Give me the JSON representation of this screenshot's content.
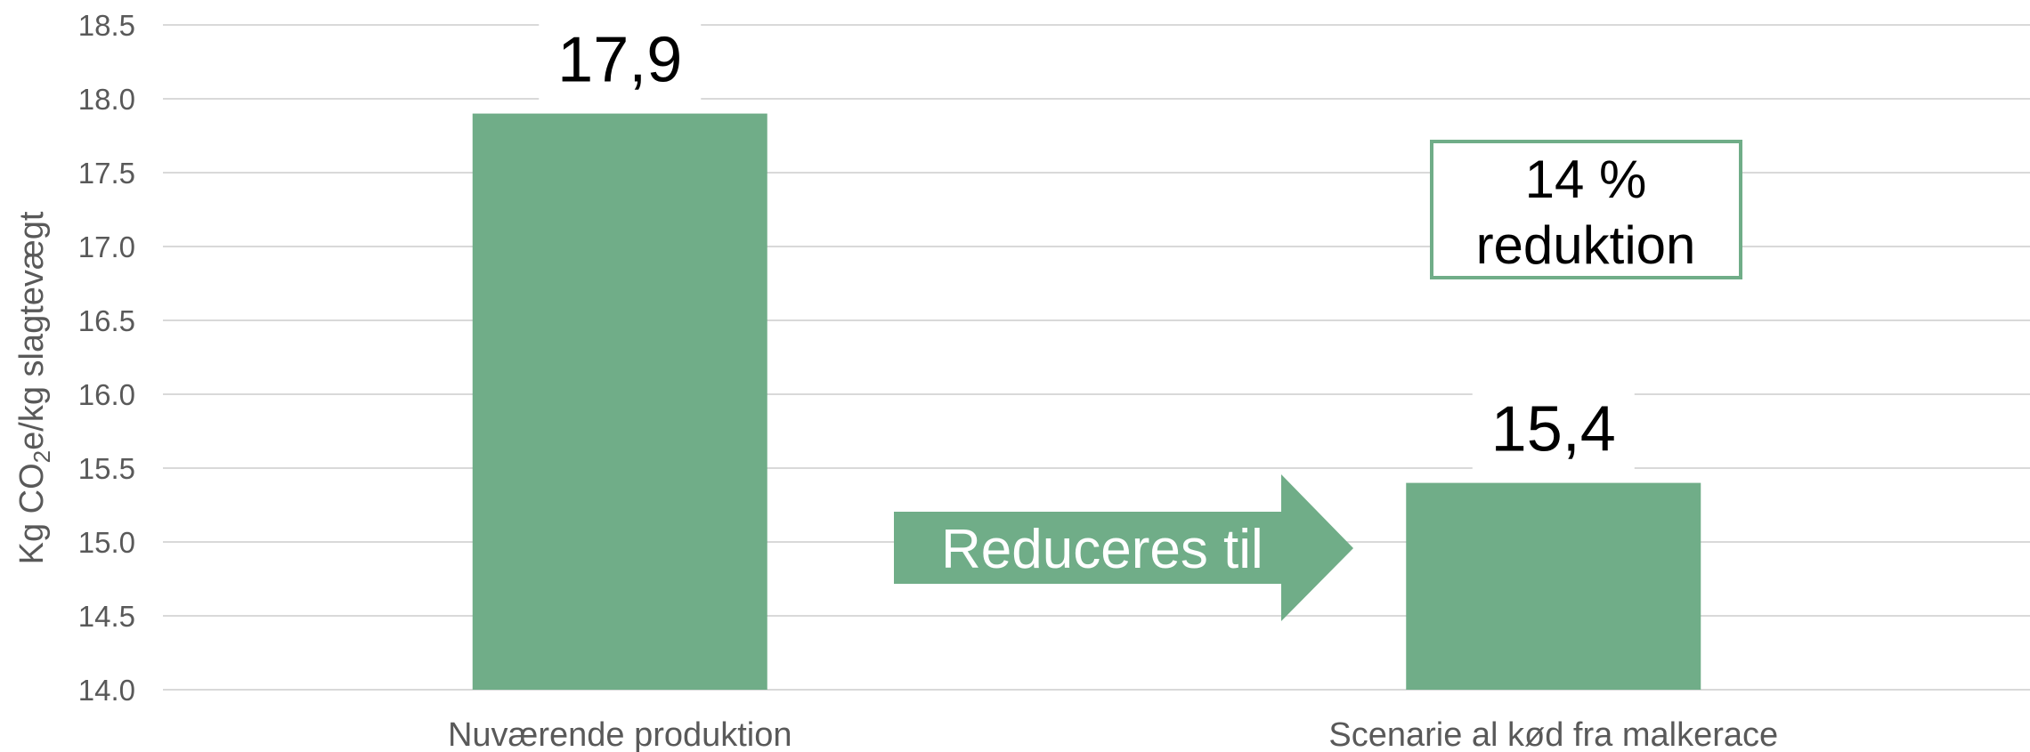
{
  "chart_data": {
    "type": "bar",
    "categories": [
      "Nuværende produktion",
      "Scenarie al kød fra malkerace"
    ],
    "values": [
      17.9,
      15.4
    ],
    "data_labels": [
      "17,9",
      "15,4"
    ],
    "ylabel": "Kg CO2e/kg slagtevægt",
    "ylabel_parts": {
      "prefix": "Kg CO",
      "subscript": "2",
      "suffix": "e/kg slagtevægt"
    },
    "ylim": [
      14.0,
      18.5
    ],
    "ytick_labels": [
      "14.0",
      "14.5",
      "15.0",
      "15.5",
      "16.0",
      "16.5",
      "17.0",
      "17.5",
      "18.0",
      "18.5"
    ],
    "grid": true,
    "bar_color": "#70AD88",
    "gridline_color": "#D9D9D9"
  },
  "annotations": {
    "arrow_label": "Reduceres til",
    "callout_line1": "14 %",
    "callout_line2": "reduktion",
    "callout_border_color": "#70AD88"
  }
}
